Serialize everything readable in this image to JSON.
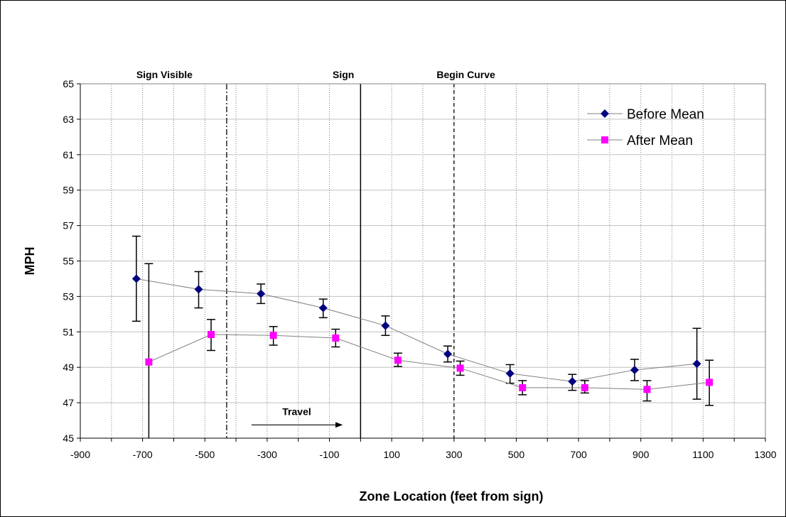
{
  "chart_data": {
    "type": "line",
    "xlabel": "Zone Location (feet from sign)",
    "ylabel": "MPH",
    "xlim": [
      -900,
      1300
    ],
    "ylim": [
      45,
      65
    ],
    "xticks": [
      -900,
      -700,
      -500,
      -300,
      -100,
      100,
      300,
      500,
      700,
      900,
      1100,
      1300
    ],
    "yticks": [
      45,
      47,
      49,
      51,
      53,
      55,
      57,
      59,
      61,
      63,
      65
    ],
    "grid": "vertical dotted every 100 ft, horizontal at each y tick",
    "legend": "top-right",
    "series": [
      {
        "name": "Before Mean",
        "color": "#000080",
        "marker": "diamond",
        "x": [
          -720,
          -520,
          -320,
          -120,
          80,
          280,
          480,
          680,
          880,
          1080
        ],
        "values": [
          54.0,
          53.4,
          53.15,
          52.35,
          51.35,
          49.75,
          48.65,
          48.2,
          48.85,
          49.2
        ],
        "error_low": [
          51.6,
          52.35,
          52.6,
          51.8,
          50.8,
          49.3,
          48.1,
          47.7,
          48.25,
          47.2
        ],
        "error_high": [
          56.4,
          54.4,
          53.7,
          52.85,
          51.9,
          50.2,
          49.15,
          48.6,
          49.45,
          51.2
        ]
      },
      {
        "name": "After Mean",
        "color": "#ff00ff",
        "marker": "square",
        "x": [
          -680,
          -480,
          -280,
          -80,
          120,
          320,
          520,
          720,
          920,
          1120
        ],
        "values": [
          49.3,
          50.85,
          50.8,
          50.65,
          49.4,
          48.95,
          47.85,
          47.85,
          47.75,
          48.15
        ],
        "error_low": [
          45,
          49.95,
          50.25,
          50.15,
          49.05,
          48.55,
          47.45,
          47.55,
          47.1,
          46.85
        ],
        "error_high": [
          54.85,
          51.7,
          51.3,
          51.15,
          49.8,
          49.35,
          48.25,
          48.25,
          48.25,
          49.4
        ]
      }
    ],
    "annotations": [
      {
        "text": "Sign Visible",
        "x": -430,
        "line_style": "dashdot"
      },
      {
        "text": "Sign",
        "x": 0,
        "line_style": "solid"
      },
      {
        "text": "Begin Curve",
        "x": 300,
        "line_style": "dashed"
      }
    ],
    "arrow": {
      "text": "Travel",
      "x_from": -350,
      "x_to": -60,
      "y": 45.75
    }
  }
}
